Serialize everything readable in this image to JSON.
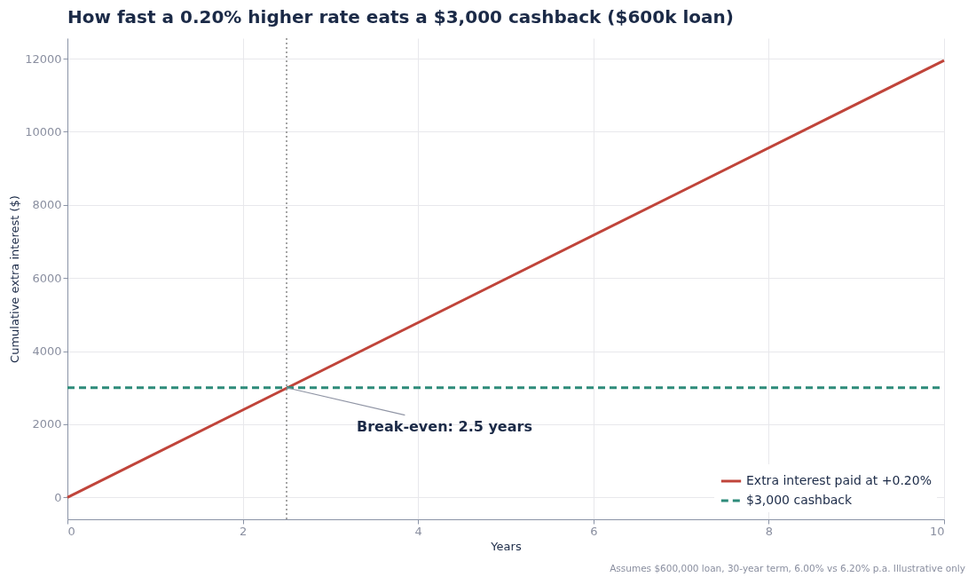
{
  "chart_data": {
    "type": "line",
    "title": "How fast a 0.20% higher rate eats a $3,000 cashback ($600k loan)",
    "xlabel": "Years",
    "ylabel": "Cumulative extra interest ($)",
    "series": [
      {
        "name": "Extra interest paid at +0.20%",
        "color": "#c0443a",
        "values": [
          0,
          11950
        ],
        "line_style": "solid"
      },
      {
        "name": "$3,000 cashback",
        "color": "#2e8b7a",
        "values": [
          3000,
          3000
        ],
        "line_style": "dashed"
      }
    ],
    "x": [
      0,
      10
    ],
    "xlim": [
      0,
      10
    ],
    "xticks": [
      0,
      2,
      4,
      6,
      8,
      10
    ],
    "ylim": [
      -600,
      12560
    ],
    "yticks": [
      0,
      2000,
      4000,
      6000,
      8000,
      10000,
      12000
    ],
    "ref_lines": [
      {
        "axis": "x",
        "value": 2.5,
        "color": "#888888",
        "line_style": "dotted"
      }
    ],
    "annotations": [
      {
        "text": "Break-even: 2.5 years",
        "x": 2.5,
        "y": 3000
      },
      "Assumes $600,000 loan, 30-year term, 6.00% vs 6.20% p.a. Illustrative only"
    ],
    "grid": true,
    "legend": "bottom right",
    "marker": "none"
  }
}
